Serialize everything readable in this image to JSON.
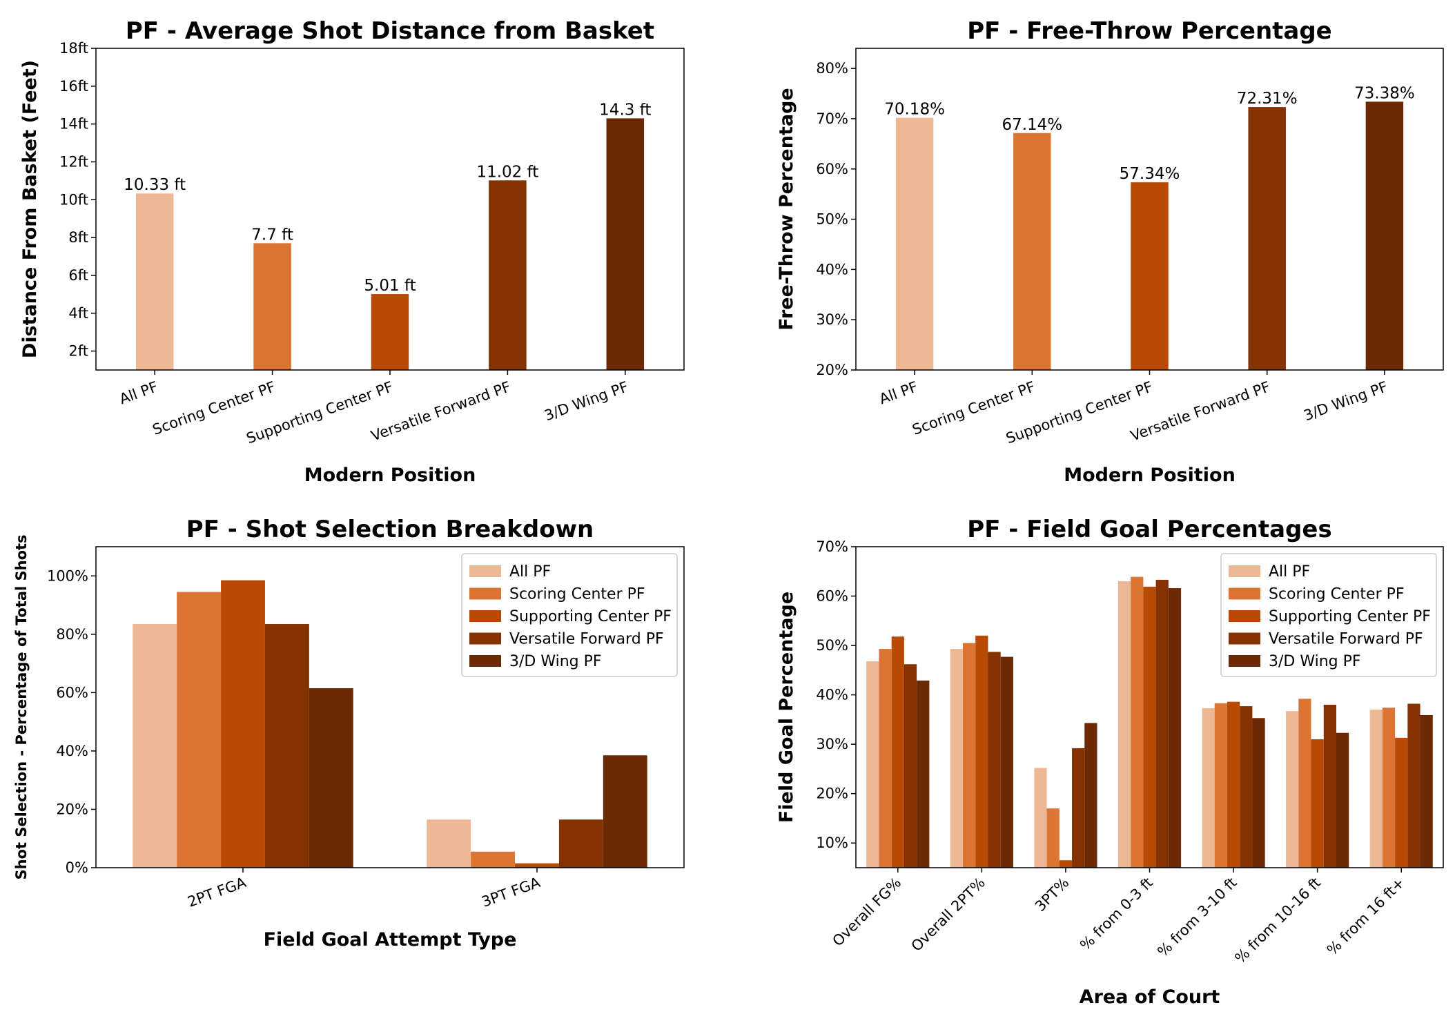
{
  "colors": [
    "#EDB995",
    "#DC7433",
    "#B84A04",
    "#853203",
    "#6C2905"
  ],
  "chart_data": [
    {
      "type": "bar",
      "title": "PF - Average Shot Distance from Basket",
      "xlabel": "Modern Position",
      "ylabel": "Distance From Basket (Feet)",
      "categories": [
        "All PF",
        "Scoring Center PF",
        "Supporting Center PF",
        "Versatile Forward PF",
        "3/D Wing PF"
      ],
      "values": [
        10.33,
        7.7,
        5.01,
        11.02,
        14.3
      ],
      "data_labels": [
        "10.33 ft",
        "7.7 ft",
        "5.01 ft",
        "11.02 ft",
        "14.3 ft"
      ],
      "yticks": [
        2,
        4,
        6,
        8,
        10,
        12,
        14,
        16,
        18
      ],
      "ytick_labels": [
        "2ft",
        "4ft",
        "6ft",
        "8ft",
        "10ft",
        "12ft",
        "14ft",
        "16ft",
        "18ft"
      ],
      "ylim": [
        1,
        18
      ],
      "grid": false
    },
    {
      "type": "bar",
      "title": "PF - Free-Throw Percentage",
      "xlabel": "Modern Position",
      "ylabel": "Free-Throw Percentage",
      "categories": [
        "All PF",
        "Scoring Center PF",
        "Supporting Center PF",
        "Versatile Forward PF",
        "3/D Wing PF"
      ],
      "values": [
        70.18,
        67.14,
        57.34,
        72.31,
        73.38
      ],
      "data_labels": [
        "70.18%",
        "67.14%",
        "57.34%",
        "72.31%",
        "73.38%"
      ],
      "yticks": [
        20,
        30,
        40,
        50,
        60,
        70,
        80
      ],
      "ytick_labels": [
        "20%",
        "30%",
        "40%",
        "50%",
        "60%",
        "70%",
        "80%"
      ],
      "ylim": [
        20,
        84
      ],
      "grid": false
    },
    {
      "type": "bar",
      "title": "PF - Shot Selection Breakdown",
      "xlabel": "Field Goal Attempt Type",
      "ylabel": "Shot Selection - Percentage of Total Shots",
      "categories": [
        "2PT FGA",
        "3PT FGA"
      ],
      "series": [
        {
          "name": "All PF",
          "values": [
            83.5,
            16.5
          ]
        },
        {
          "name": "Scoring Center PF",
          "values": [
            94.5,
            5.5
          ]
        },
        {
          "name": "Supporting Center PF",
          "values": [
            98.5,
            1.5
          ]
        },
        {
          "name": "Versatile Forward PF",
          "values": [
            83.5,
            16.5
          ]
        },
        {
          "name": "3/D Wing PF",
          "values": [
            61.5,
            38.5
          ]
        }
      ],
      "yticks": [
        0,
        20,
        40,
        60,
        80,
        100
      ],
      "ytick_labels": [
        "0%",
        "20%",
        "40%",
        "60%",
        "80%",
        "100%"
      ],
      "ylim": [
        0,
        110
      ],
      "legend": "top-right",
      "grid": false
    },
    {
      "type": "bar",
      "title": "PF - Field Goal Percentages",
      "xlabel": "Area of Court",
      "ylabel": "Field Goal Percentage",
      "categories": [
        "Overall FG%",
        "Overall 2PT%",
        "3PT%",
        "% from 0-3 ft",
        "% from 3-10 ft",
        "% from 10-16 ft",
        "% from 16 ft+"
      ],
      "series": [
        {
          "name": "All PF",
          "values": [
            46.8,
            49.3,
            25.2,
            63.0,
            37.3,
            36.7,
            37.0
          ]
        },
        {
          "name": "Scoring Center PF",
          "values": [
            49.3,
            50.5,
            17.0,
            63.9,
            38.3,
            39.2,
            37.4
          ]
        },
        {
          "name": "Supporting Center PF",
          "values": [
            51.8,
            52.0,
            6.5,
            61.9,
            38.6,
            31.0,
            31.3
          ]
        },
        {
          "name": "Versatile Forward PF",
          "values": [
            46.2,
            48.7,
            29.2,
            63.3,
            37.7,
            38.0,
            38.2
          ]
        },
        {
          "name": "3/D Wing PF",
          "values": [
            42.9,
            47.7,
            34.3,
            61.6,
            35.3,
            32.3,
            35.9
          ]
        }
      ],
      "yticks": [
        10,
        20,
        30,
        40,
        50,
        60,
        70
      ],
      "ytick_labels": [
        "10%",
        "20%",
        "30%",
        "40%",
        "50%",
        "60%",
        "70%"
      ],
      "ylim": [
        5,
        70
      ],
      "legend": "top-right",
      "grid": false
    }
  ]
}
